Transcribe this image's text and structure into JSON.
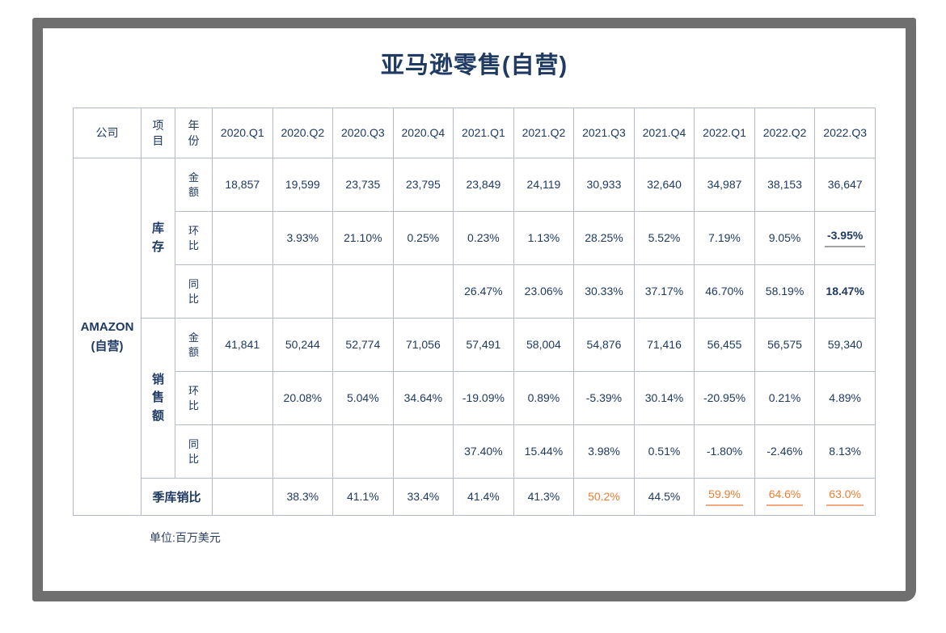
{
  "title": "亚马逊零售(自营)",
  "unit_note": "单位:百万美元",
  "colors": {
    "text_navy": "#1f3a63",
    "accent_orange": "#ed7d31",
    "underline_gray": "#a3a3a3",
    "underline_orange": "#f2a97e",
    "grid_line": "#b4bcc9",
    "frame_gray": "#6f6f6f"
  },
  "table": {
    "headers": {
      "company": "公司",
      "item_lines": [
        "项",
        "目"
      ],
      "year_lines": [
        "年",
        "份"
      ],
      "quarters": [
        "2020.Q1",
        "2020.Q2",
        "2020.Q3",
        "2020.Q4",
        "2021.Q1",
        "2021.Q2",
        "2021.Q3",
        "2021.Q4",
        "2022.Q1",
        "2022.Q2",
        "2022.Q3"
      ]
    },
    "company_lines": [
      "AMAZON",
      "(自营)"
    ],
    "groups": [
      {
        "label_lines": [
          "库",
          "存"
        ],
        "rows": [
          {
            "metric_lines": [
              "金",
              "额"
            ],
            "values": [
              "18,857",
              "19,599",
              "23,735",
              "23,795",
              "23,849",
              "24,119",
              "30,933",
              "32,640",
              "34,987",
              "38,153",
              "36,647"
            ]
          },
          {
            "metric_lines": [
              "环",
              "比"
            ],
            "values": [
              "",
              "3.93%",
              "21.10%",
              "0.25%",
              "0.23%",
              "1.13%",
              "28.25%",
              "5.52%",
              "7.19%",
              "9.05%",
              "-3.95%"
            ],
            "marks": {
              "10": "bold underline-gray"
            }
          },
          {
            "metric_lines": [
              "同",
              "比"
            ],
            "values": [
              "",
              "",
              "",
              "",
              "26.47%",
              "23.06%",
              "30.33%",
              "37.17%",
              "46.70%",
              "58.19%",
              "18.47%"
            ],
            "marks": {
              "10": "bold"
            }
          }
        ]
      },
      {
        "label_lines": [
          "销",
          "售",
          "额"
        ],
        "rows": [
          {
            "metric_lines": [
              "金",
              "额"
            ],
            "values": [
              "41,841",
              "50,244",
              "52,774",
              "71,056",
              "57,491",
              "58,004",
              "54,876",
              "71,416",
              "56,455",
              "56,575",
              "59,340"
            ]
          },
          {
            "metric_lines": [
              "环",
              "比"
            ],
            "values": [
              "",
              "20.08%",
              "5.04%",
              "34.64%",
              "-19.09%",
              "0.89%",
              "-5.39%",
              "30.14%",
              "-20.95%",
              "0.21%",
              "4.89%"
            ]
          },
          {
            "metric_lines": [
              "同",
              "比"
            ],
            "values": [
              "",
              "",
              "",
              "",
              "37.40%",
              "15.44%",
              "3.98%",
              "0.51%",
              "-1.80%",
              "-2.46%",
              "8.13%"
            ]
          }
        ]
      }
    ],
    "ratio_row": {
      "label": "季库销比",
      "values": [
        "",
        "38.3%",
        "41.1%",
        "33.4%",
        "41.4%",
        "41.3%",
        "50.2%",
        "44.5%",
        "59.9%",
        "64.6%",
        "63.0%"
      ],
      "marks": {
        "6": "orange",
        "8": "orange underline-orange",
        "9": "orange underline-orange",
        "10": "orange underline-orange"
      }
    }
  },
  "chart_data": {
    "type": "table",
    "title": "亚马逊零售(自营)",
    "unit": "百万美元",
    "company": "AMAZON (自营)",
    "columns": [
      "2020.Q1",
      "2020.Q2",
      "2020.Q3",
      "2020.Q4",
      "2021.Q1",
      "2021.Q2",
      "2021.Q3",
      "2021.Q4",
      "2022.Q1",
      "2022.Q2",
      "2022.Q3"
    ],
    "series": [
      {
        "name": "库存-金额",
        "values": [
          18857,
          19599,
          23735,
          23795,
          23849,
          24119,
          30933,
          32640,
          34987,
          38153,
          36647
        ]
      },
      {
        "name": "库存-环比(%)",
        "values": [
          null,
          3.93,
          21.1,
          0.25,
          0.23,
          1.13,
          28.25,
          5.52,
          7.19,
          9.05,
          -3.95
        ]
      },
      {
        "name": "库存-同比(%)",
        "values": [
          null,
          null,
          null,
          null,
          26.47,
          23.06,
          30.33,
          37.17,
          46.7,
          58.19,
          18.47
        ]
      },
      {
        "name": "销售额-金额",
        "values": [
          41841,
          50244,
          52774,
          71056,
          57491,
          58004,
          54876,
          71416,
          56455,
          56575,
          59340
        ]
      },
      {
        "name": "销售额-环比(%)",
        "values": [
          null,
          20.08,
          5.04,
          34.64,
          -19.09,
          0.89,
          -5.39,
          30.14,
          -20.95,
          0.21,
          4.89
        ]
      },
      {
        "name": "销售额-同比(%)",
        "values": [
          null,
          null,
          null,
          null,
          37.4,
          15.44,
          3.98,
          0.51,
          -1.8,
          -2.46,
          8.13
        ]
      },
      {
        "name": "季库销比(%)",
        "values": [
          null,
          38.3,
          41.1,
          33.4,
          41.4,
          41.3,
          50.2,
          44.5,
          59.9,
          64.6,
          63.0
        ]
      }
    ]
  }
}
